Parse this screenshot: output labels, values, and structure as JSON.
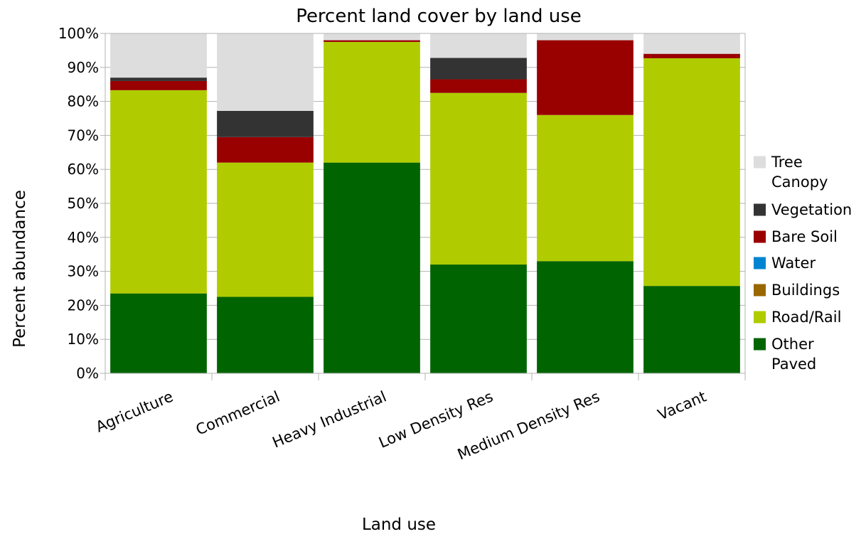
{
  "chart_data": {
    "type": "bar",
    "stacked": true,
    "title": "Percent land cover by land use",
    "xlabel": "Land use",
    "ylabel": "Percent abundance",
    "ylim": [
      0,
      100
    ],
    "ytick_step": 10,
    "ytick_labels": [
      "0%",
      "10%",
      "20%",
      "30%",
      "40%",
      "50%",
      "60%",
      "70%",
      "80%",
      "90%",
      "100%"
    ],
    "grid": true,
    "legend_position": "right",
    "categories": [
      "Agriculture",
      "Commercial",
      "Heavy Industrial",
      "Low Density Res",
      "Medium Density Res",
      "Vacant"
    ],
    "series": [
      {
        "name": "Tree Canopy",
        "color": "#006400",
        "values": [
          23.5,
          22.5,
          62,
          32,
          33,
          25.7
        ]
      },
      {
        "name": "Vegetation",
        "color": "#b0cc00",
        "values": [
          59.8,
          39.5,
          35.5,
          50.5,
          43,
          67
        ]
      },
      {
        "name": "Bare Soil",
        "color": "#996600",
        "values": [
          0,
          0,
          0,
          0,
          0,
          0
        ]
      },
      {
        "name": "Water",
        "color": "#0084d1",
        "values": [
          0,
          0,
          0,
          0,
          0,
          0
        ]
      },
      {
        "name": "Buildings",
        "color": "#990000",
        "values": [
          2.7,
          7.5,
          0.5,
          4,
          22,
          1.3
        ]
      },
      {
        "name": "Road/Rail",
        "color": "#333333",
        "values": [
          1,
          7.7,
          0,
          6.3,
          0,
          0
        ]
      },
      {
        "name": "Other Paved",
        "color": "#dddddd",
        "values": [
          13,
          22.8,
          2,
          7.2,
          2,
          6
        ]
      }
    ],
    "legend_labels": [
      [
        "Other",
        "Paved"
      ],
      [
        "Road/Rail"
      ],
      [
        "Buildings"
      ],
      [
        "Water"
      ],
      [
        "Bare Soil"
      ],
      [
        "Vegetation"
      ],
      [
        "Tree",
        "Canopy"
      ]
    ],
    "legend_order": [
      6,
      5,
      4,
      3,
      2,
      1,
      0
    ]
  }
}
